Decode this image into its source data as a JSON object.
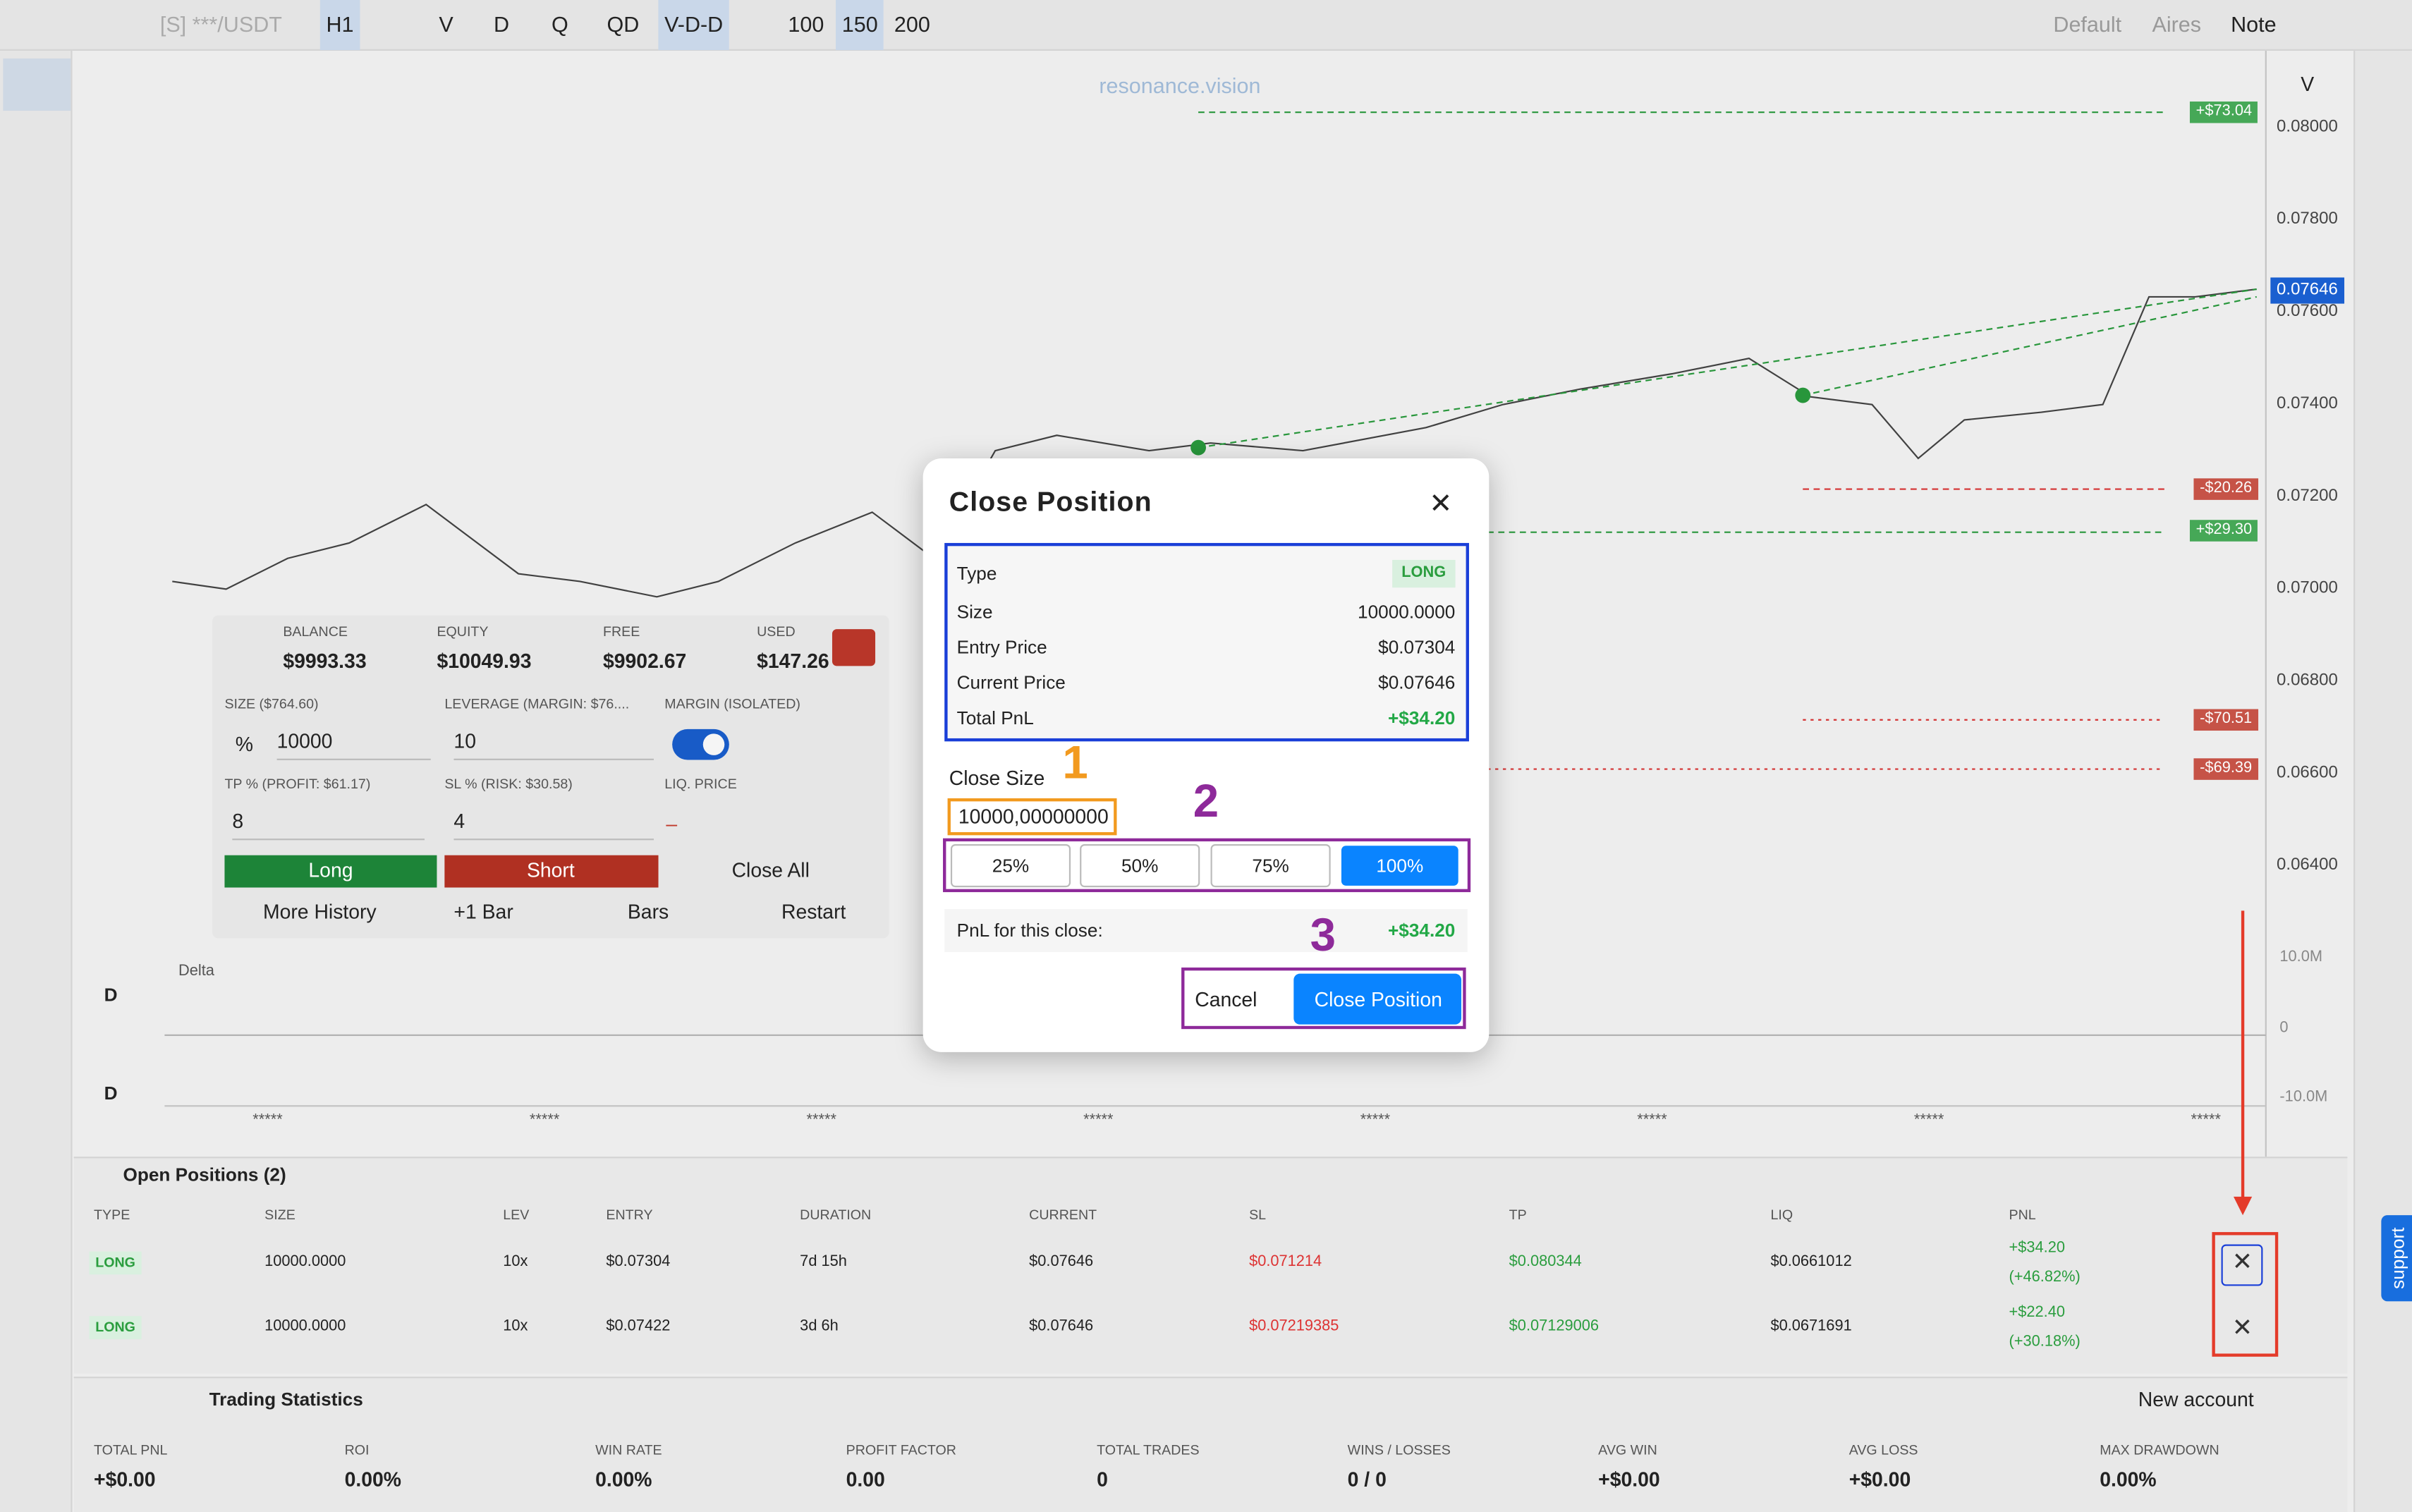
{
  "toolbar": {
    "symbol": "[S] ***/USDT",
    "intervals": [
      "H1",
      "V",
      "D",
      "Q",
      "QD",
      "V-D-D"
    ],
    "bar_counts": [
      "100",
      "150",
      "200"
    ],
    "layouts": [
      "Default",
      "Aires",
      "Note"
    ]
  },
  "chart": {
    "watermark": "resonance.vision",
    "price_axis_title": "V",
    "price_ticks": [
      "0.08000",
      "0.07800",
      "0.07600",
      "0.07400",
      "0.07200",
      "0.07000",
      "0.06800",
      "0.06600",
      "0.06400"
    ],
    "current_price_tag": "0.07646",
    "order_tags": [
      "+$73.04",
      "-$20.26",
      "+$29.30",
      "-$70.51",
      "-$69.39"
    ],
    "delta_title": "Delta",
    "delta_ticks": [
      "10.0M",
      "0",
      "-10.0M"
    ],
    "side_labels": [
      "D",
      "D"
    ],
    "time_labels": [
      "*****",
      "*****",
      "*****",
      "*****",
      "*****",
      "*****",
      "*****",
      "*****"
    ]
  },
  "account": {
    "stats": [
      {
        "label": "BALANCE",
        "value": "$9993.33"
      },
      {
        "label": "EQUITY",
        "value": "$10049.93"
      },
      {
        "label": "FREE",
        "value": "$9902.67"
      },
      {
        "label": "USED",
        "value": "$147.26"
      }
    ],
    "size_label": "SIZE ($764.60)",
    "leverage_label": "LEVERAGE (MARGIN: $76....",
    "margin_label": "MARGIN (ISOLATED)",
    "size_unit": "%",
    "size_value": "10000",
    "leverage_value": "10",
    "tp_label": "TP % (PROFIT: $61.17)",
    "sl_label": "SL % (RISK: $30.58)",
    "liq_label": "LIQ. PRICE",
    "tp_value": "8",
    "sl_value": "4",
    "liq_value": "–",
    "buttons": [
      "Long",
      "Short",
      "Close All"
    ],
    "links": [
      "More History",
      "+1 Bar",
      "Bars",
      "Restart"
    ]
  },
  "modal": {
    "title": "Close Position",
    "rows": [
      {
        "label": "Type",
        "value": "LONG"
      },
      {
        "label": "Size",
        "value": "10000.0000"
      },
      {
        "label": "Entry Price",
        "value": "$0.07304"
      },
      {
        "label": "Current Price",
        "value": "$0.07646"
      },
      {
        "label": "Total PnL",
        "value": "+$34.20"
      }
    ],
    "close_size_label": "Close Size",
    "close_size_value": "10000,00000000",
    "percent_buttons": [
      "25%",
      "50%",
      "75%",
      "100%"
    ],
    "pnl_label": "PnL for this close:",
    "pnl_value": "+$34.20",
    "cancel": "Cancel",
    "confirm": "Close Position"
  },
  "annotations": [
    "1",
    "2",
    "3"
  ],
  "positions": {
    "title": "Open Positions (2)",
    "columns": [
      "TYPE",
      "SIZE",
      "LEV",
      "ENTRY",
      "DURATION",
      "CURRENT",
      "SL",
      "TP",
      "LIQ",
      "PNL"
    ],
    "rows": [
      [
        "LONG",
        "10000.0000",
        "10x",
        "$0.07304",
        "7d 15h",
        "$0.07646",
        "$0.071214",
        "$0.080344",
        "$0.0661012",
        "+$34.20",
        "(+46.82%)"
      ],
      [
        "LONG",
        "10000.0000",
        "10x",
        "$0.07422",
        "3d 6h",
        "$0.07646",
        "$0.07219385",
        "$0.07129006",
        "$0.0671691",
        "+$22.40",
        "(+30.18%)"
      ]
    ]
  },
  "statistics": {
    "title": "Trading Statistics",
    "new_account": "New account",
    "labels": [
      "TOTAL PNL",
      "ROI",
      "WIN RATE",
      "PROFIT FACTOR",
      "TOTAL TRADES",
      "WINS / LOSSES",
      "AVG WIN",
      "AVG LOSS",
      "MAX DRAWDOWN"
    ],
    "values": [
      "+$0.00",
      "0.00%",
      "0.00%",
      "0.00",
      "0",
      "0 / 0",
      "+$0.00",
      "+$0.00",
      "0.00%"
    ]
  },
  "support": "support"
}
